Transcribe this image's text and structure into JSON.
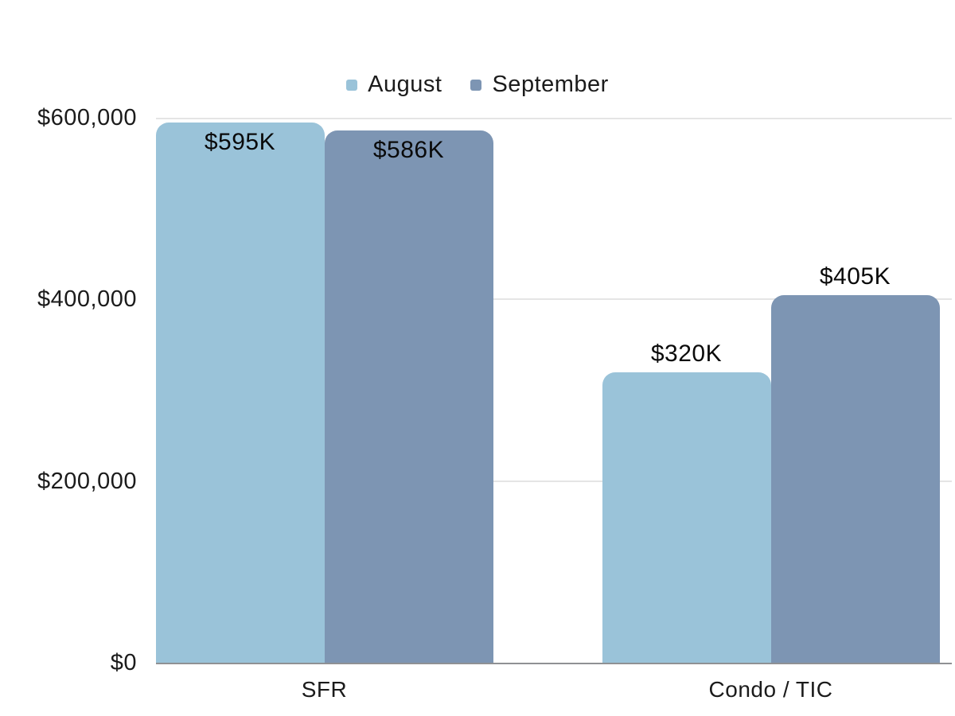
{
  "page": {
    "background": "#ffffff"
  },
  "legend": {
    "items": [
      {
        "label": "August",
        "color": "#9AC3D9"
      },
      {
        "label": "September",
        "color": "#7D95B3"
      }
    ]
  },
  "chart_data": {
    "type": "bar",
    "title": "",
    "categories": [
      "SFR",
      "Condo / TIC"
    ],
    "series": [
      {
        "name": "August",
        "color": "#9AC3D9",
        "values": [
          595000,
          320000
        ],
        "data_labels": [
          "$595K",
          "$320K"
        ]
      },
      {
        "name": "September",
        "color": "#7D95B3",
        "values": [
          586000,
          405000
        ],
        "data_labels": [
          "$586K",
          "$405K"
        ]
      }
    ],
    "ylim": [
      0,
      600000
    ],
    "ytick_values": [
      0,
      200000,
      400000,
      600000
    ],
    "ytick_labels": [
      "$0",
      "$200,000",
      "$400,000",
      "$600,000"
    ],
    "grid": true,
    "legend_position": "top center",
    "colors": {
      "gridline": "#E5E5E5",
      "axis_line": "#8F9194",
      "tick_text": "#1B1B1B",
      "data_label_text": "#0A0A0A"
    }
  }
}
